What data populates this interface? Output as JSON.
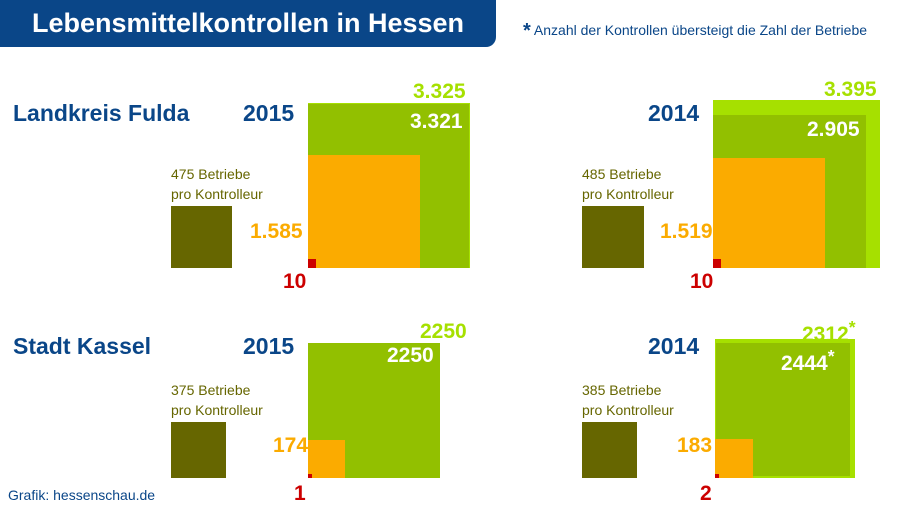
{
  "title": "Lebensmittelkontrollen in Hessen",
  "note": {
    "star": "*",
    "text": "Anzahl der Kontrollen übersteigt die Zahl der Betriebe"
  },
  "source": "Grafik: hessenschau.de",
  "colors": {
    "title_bg": "#0a4688",
    "light_green": "#a6e000",
    "green": "#92c000",
    "orange": "#fbab00",
    "red": "#cc0000",
    "olive": "#666600"
  },
  "regions": [
    {
      "name": "Landkreis Fulda",
      "panels": [
        {
          "year": "2015",
          "light_green": "3.325",
          "green": "3.321",
          "orange": "1.585",
          "red": "10",
          "betriebe": "475 Betriebe",
          "pro": "pro Kontrolleur"
        },
        {
          "year": "2014",
          "light_green": "3.395",
          "green": "2.905",
          "orange": "1.519",
          "red": "10",
          "betriebe": "485 Betriebe",
          "pro": "pro Kontrolleur"
        }
      ]
    },
    {
      "name": "Stadt Kassel",
      "panels": [
        {
          "year": "2015",
          "light_green": "2250",
          "green": "2250",
          "orange": "174",
          "red": "1",
          "betriebe": "375 Betriebe",
          "pro": "pro Kontrolleur"
        },
        {
          "year": "2014",
          "light_green": "2312",
          "green": "2444",
          "orange": "183",
          "red": "2",
          "betriebe": "385 Betriebe",
          "pro": "pro Kontrolleur",
          "star": "*"
        }
      ]
    }
  ]
}
